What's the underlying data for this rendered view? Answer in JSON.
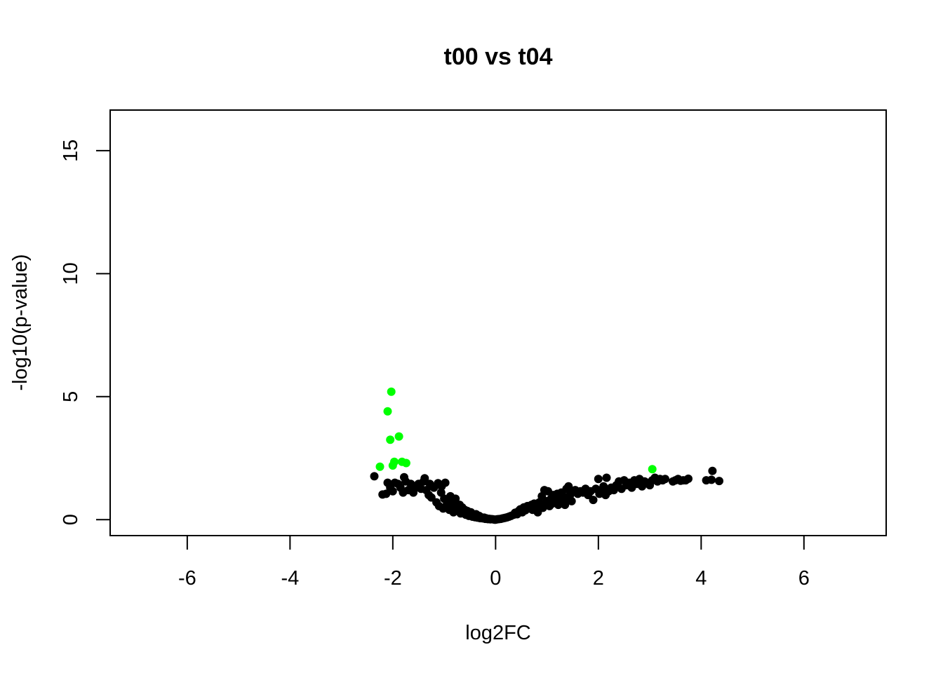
{
  "chart_data": {
    "type": "scatter",
    "title": "t00 vs t04",
    "xlabel": "log2FC",
    "ylabel": "-log10(p-value)",
    "xlim": [
      -7.5,
      7.6
    ],
    "ylim": [
      -0.65,
      16.65
    ],
    "xticks": [
      -6,
      -4,
      -2,
      0,
      2,
      4,
      6
    ],
    "yticks": [
      0,
      5,
      10,
      15
    ],
    "grid": false,
    "legend": "none",
    "colors": {
      "significant": "#00ff00",
      "not_significant": "#000000"
    },
    "series": [
      {
        "color": "#000000",
        "points": [
          [
            -2.36,
            1.76
          ],
          [
            -2.2,
            1.02
          ],
          [
            -2.13,
            1.05
          ],
          [
            -2.1,
            1.5
          ],
          [
            -2.05,
            1.3
          ],
          [
            -2.0,
            1.15
          ],
          [
            -1.96,
            1.5
          ],
          [
            -1.9,
            1.45
          ],
          [
            -1.85,
            1.3
          ],
          [
            -1.8,
            1.1
          ],
          [
            -1.78,
            1.72
          ],
          [
            -1.75,
            1.55
          ],
          [
            -1.7,
            1.2
          ],
          [
            -1.65,
            1.45
          ],
          [
            -1.6,
            1.1
          ],
          [
            -1.55,
            1.3
          ],
          [
            -1.5,
            1.45
          ],
          [
            -1.45,
            1.25
          ],
          [
            -1.4,
            1.55
          ],
          [
            -1.38,
            1.68
          ],
          [
            -1.35,
            1.2
          ],
          [
            -1.3,
            1.0
          ],
          [
            -1.28,
            1.45
          ],
          [
            -1.25,
            0.9
          ],
          [
            -1.2,
            1.3
          ],
          [
            -1.15,
            0.7
          ],
          [
            -1.12,
            1.48
          ],
          [
            -1.1,
            0.55
          ],
          [
            -1.06,
            1.1
          ],
          [
            -1.05,
            1.35
          ],
          [
            -1.02,
            0.45
          ],
          [
            -1.0,
            0.85
          ],
          [
            -0.98,
            1.5
          ],
          [
            -0.95,
            0.6
          ],
          [
            -0.92,
            0.75
          ],
          [
            -0.9,
            0.4
          ],
          [
            -0.88,
            0.95
          ],
          [
            -0.85,
            0.55
          ],
          [
            -0.82,
            0.3
          ],
          [
            -0.8,
            0.7
          ],
          [
            -0.78,
            0.85
          ],
          [
            -0.75,
            0.45
          ],
          [
            -0.72,
            0.35
          ],
          [
            -0.7,
            0.6
          ],
          [
            -0.68,
            0.25
          ],
          [
            -0.65,
            0.5
          ],
          [
            -0.62,
            0.3
          ],
          [
            -0.6,
            0.4
          ],
          [
            -0.58,
            0.2
          ],
          [
            -0.55,
            0.35
          ],
          [
            -0.52,
            0.15
          ],
          [
            -0.5,
            0.25
          ],
          [
            -0.48,
            0.3
          ],
          [
            -0.45,
            0.12
          ],
          [
            -0.42,
            0.2
          ],
          [
            -0.4,
            0.1
          ],
          [
            -0.38,
            0.22
          ],
          [
            -0.35,
            0.08
          ],
          [
            -0.32,
            0.15
          ],
          [
            -0.3,
            0.06
          ],
          [
            -0.28,
            0.1
          ],
          [
            -0.25,
            0.05
          ],
          [
            -0.22,
            0.08
          ],
          [
            -0.2,
            0.03
          ],
          [
            -0.18,
            0.05
          ],
          [
            -0.15,
            0.02
          ],
          [
            -0.12,
            0.03
          ],
          [
            -0.1,
            0.01
          ],
          [
            -0.08,
            0.02
          ],
          [
            -0.05,
            0.01
          ],
          [
            -0.02,
            0.0
          ],
          [
            0.0,
            0.0
          ],
          [
            0.03,
            0.01
          ],
          [
            0.06,
            0.02
          ],
          [
            0.1,
            0.03
          ],
          [
            0.14,
            0.05
          ],
          [
            0.18,
            0.07
          ],
          [
            0.22,
            0.09
          ],
          [
            0.26,
            0.12
          ],
          [
            0.3,
            0.15
          ],
          [
            0.35,
            0.2
          ],
          [
            0.38,
            0.28
          ],
          [
            0.42,
            0.22
          ],
          [
            0.45,
            0.35
          ],
          [
            0.48,
            0.42
          ],
          [
            0.52,
            0.3
          ],
          [
            0.55,
            0.5
          ],
          [
            0.58,
            0.38
          ],
          [
            0.62,
            0.55
          ],
          [
            0.65,
            0.45
          ],
          [
            0.7,
            0.6
          ],
          [
            0.72,
            0.4
          ],
          [
            0.75,
            0.65
          ],
          [
            0.78,
            0.5
          ],
          [
            0.82,
            0.3
          ],
          [
            0.85,
            0.7
          ],
          [
            0.88,
            0.55
          ],
          [
            0.9,
            0.95
          ],
          [
            0.92,
            0.48
          ],
          [
            0.95,
            1.2
          ],
          [
            0.98,
            0.62
          ],
          [
            1.0,
            0.75
          ],
          [
            1.02,
            1.15
          ],
          [
            1.05,
            0.55
          ],
          [
            1.08,
            0.85
          ],
          [
            1.1,
            0.65
          ],
          [
            1.12,
            1.0
          ],
          [
            1.15,
            0.7
          ],
          [
            1.18,
            0.9
          ],
          [
            1.2,
            1.05
          ],
          [
            1.22,
            0.6
          ],
          [
            1.25,
            0.8
          ],
          [
            1.28,
            1.1
          ],
          [
            1.3,
            0.7
          ],
          [
            1.32,
            0.95
          ],
          [
            1.35,
            0.6
          ],
          [
            1.38,
            1.25
          ],
          [
            1.4,
            0.8
          ],
          [
            1.42,
            1.35
          ],
          [
            1.45,
            1.0
          ],
          [
            1.48,
            0.75
          ],
          [
            1.5,
            1.15
          ],
          [
            1.55,
            1.2
          ],
          [
            1.6,
            1.05
          ],
          [
            1.65,
            1.15
          ],
          [
            1.7,
            1.1
          ],
          [
            1.75,
            1.25
          ],
          [
            1.8,
            1.0
          ],
          [
            1.85,
            1.15
          ],
          [
            1.9,
            0.8
          ],
          [
            1.95,
            1.25
          ],
          [
            2.0,
            1.65
          ],
          [
            2.02,
            1.05
          ],
          [
            2.06,
            1.2
          ],
          [
            2.1,
            1.35
          ],
          [
            2.14,
            1.0
          ],
          [
            2.16,
            1.7
          ],
          [
            2.2,
            1.15
          ],
          [
            2.25,
            1.3
          ],
          [
            2.3,
            1.2
          ],
          [
            2.35,
            1.4
          ],
          [
            2.4,
            1.55
          ],
          [
            2.45,
            1.25
          ],
          [
            2.5,
            1.6
          ],
          [
            2.55,
            1.4
          ],
          [
            2.6,
            1.5
          ],
          [
            2.65,
            1.3
          ],
          [
            2.7,
            1.6
          ],
          [
            2.75,
            1.45
          ],
          [
            2.8,
            1.65
          ],
          [
            2.85,
            1.35
          ],
          [
            2.9,
            1.55
          ],
          [
            2.95,
            1.5
          ],
          [
            3.0,
            1.4
          ],
          [
            3.05,
            1.6
          ],
          [
            3.1,
            1.7
          ],
          [
            3.15,
            1.55
          ],
          [
            3.2,
            1.65
          ],
          [
            3.25,
            1.6
          ],
          [
            3.3,
            1.65
          ],
          [
            3.45,
            1.55
          ],
          [
            3.5,
            1.6
          ],
          [
            3.55,
            1.65
          ],
          [
            3.6,
            1.58
          ],
          [
            3.65,
            1.6
          ],
          [
            3.7,
            1.6
          ],
          [
            3.75,
            1.66
          ],
          [
            4.1,
            1.6
          ],
          [
            4.2,
            1.62
          ],
          [
            4.22,
            1.98
          ],
          [
            4.35,
            1.57
          ]
        ]
      },
      {
        "color": "#00ff00",
        "points": [
          [
            -2.25,
            2.15
          ],
          [
            -2.1,
            4.4
          ],
          [
            -2.05,
            3.25
          ],
          [
            -2.03,
            5.2
          ],
          [
            -2.0,
            2.2
          ],
          [
            -1.97,
            2.35
          ],
          [
            -1.88,
            3.38
          ],
          [
            -1.82,
            2.35
          ],
          [
            -1.74,
            2.3
          ],
          [
            3.05,
            2.05
          ]
        ]
      }
    ]
  }
}
